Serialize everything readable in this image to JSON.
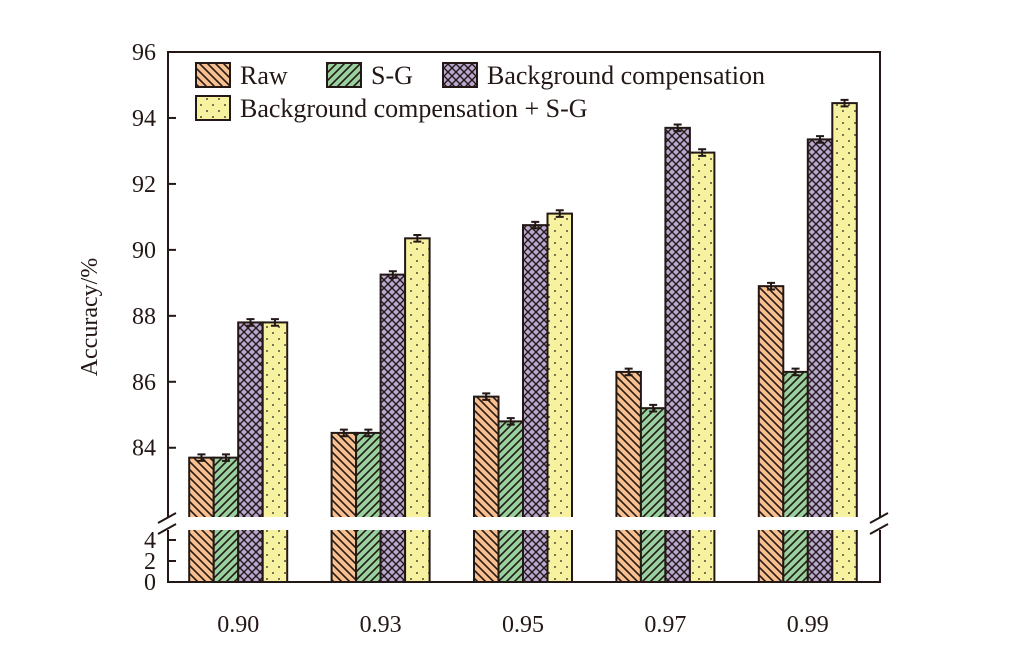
{
  "chart_data": {
    "type": "bar",
    "title": "",
    "xlabel": "",
    "ylabel": "Accuracy/%",
    "categories": [
      "0.90",
      "0.93",
      "0.95",
      "0.97",
      "0.99"
    ],
    "series": [
      {
        "name": "Raw",
        "color": "#f9c08f",
        "pattern": "hatch-back",
        "values": [
          83.7,
          84.45,
          85.55,
          86.3,
          88.9
        ]
      },
      {
        "name": "S-G",
        "color": "#98d09e",
        "pattern": "hatch-fwd",
        "values": [
          83.7,
          84.45,
          84.8,
          85.2,
          86.3
        ]
      },
      {
        "name": "Background compensation",
        "color": "#b9a9d1",
        "pattern": "crosshatch",
        "values": [
          87.8,
          89.25,
          90.75,
          93.7,
          93.35
        ]
      },
      {
        "name": "Background compensation + S-G",
        "color": "#f6f29f",
        "pattern": "dots",
        "values": [
          87.8,
          90.35,
          91.1,
          92.95,
          94.45
        ]
      }
    ],
    "error": 0.1,
    "axis_break": true,
    "upper_ylim": [
      81.9,
      96
    ],
    "upper_yticks": [
      "84",
      "86",
      "88",
      "90",
      "92",
      "94",
      "96"
    ],
    "lower_ylim": [
      0,
      4.95
    ],
    "lower_yticks": [
      "0",
      "2",
      "4"
    ],
    "legend_placement": "top-left",
    "grid": false
  }
}
